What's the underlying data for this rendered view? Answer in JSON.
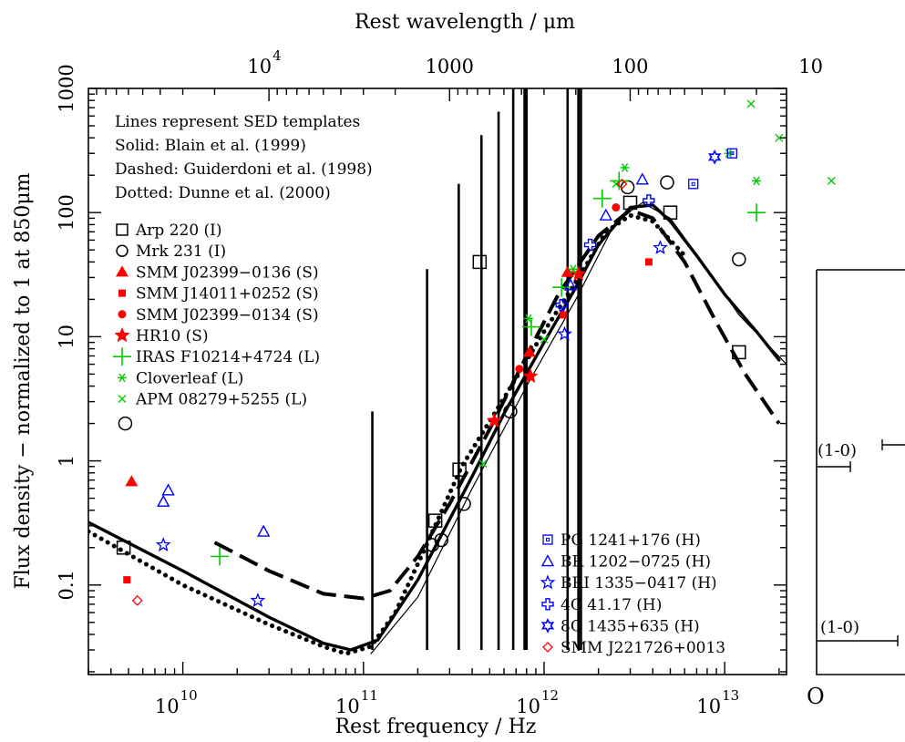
{
  "chart_data": {
    "type": "scatter",
    "xlabel": "Rest frequency / Hz",
    "x2label": "Rest wavelength / μm",
    "ylabel": "Flux density − normalized to 1 at 850μm",
    "x_scale": "log",
    "y_scale": "log",
    "xlim": [
      3000000000.0,
      22000000000000.0
    ],
    "ylim": [
      0.019,
      1000
    ],
    "x_tick_labels": [
      "10",
      "11",
      "12",
      "13"
    ],
    "x_tick_values": [
      10000000000.0,
      100000000000.0,
      1000000000000.0,
      10000000000000.0
    ],
    "x2_tick_labels": [
      "10",
      "100",
      "1000",
      "4"
    ],
    "x2_tick_wavelengths_um": [
      10,
      100,
      1000,
      10000
    ],
    "y_tick_labels": [
      "0.1",
      "1",
      "10",
      "100",
      "1000"
    ],
    "y_tick_values": [
      0.1,
      1,
      10,
      100,
      1000
    ],
    "annotation_lines": [
      "Lines represent SED templates",
      "Solid: Blain et al. (1999)",
      "Dashed: Guiderdoni et al. (1998)",
      "Dotted: Dunne et al. (2000)"
    ],
    "legend_left": [
      {
        "label": "Arp 220 (I)",
        "marker": "square",
        "color": "#000000"
      },
      {
        "label": "Mrk 231 (I)",
        "marker": "circle",
        "color": "#000000"
      },
      {
        "label": "SMM J02399−0136 (S)",
        "marker": "triangle-filled",
        "color": "#ff0000"
      },
      {
        "label": "SMM J14011+0252 (S)",
        "marker": "square-filled",
        "color": "#ff0000"
      },
      {
        "label": "SMM J02399−0134 (S)",
        "marker": "circle-filled",
        "color": "#ff0000"
      },
      {
        "label": "HR10 (S)",
        "marker": "star-filled",
        "color": "#ff0000"
      },
      {
        "label": "IRAS F10214+4724 (L)",
        "marker": "plus",
        "color": "#00cc00"
      },
      {
        "label": "Cloverleaf (L)",
        "marker": "asterisk",
        "color": "#00cc00"
      },
      {
        "label": "APM 08279+5255 (L)",
        "marker": "cross",
        "color": "#00cc00"
      }
    ],
    "legend_right": [
      {
        "label": "PG 1241+176 (H)",
        "marker": "square-open",
        "color": "#0000ff"
      },
      {
        "label": "BR 1202−0725 (H)",
        "marker": "triangle-open",
        "color": "#0000ff"
      },
      {
        "label": "BRI 1335−0417 (H)",
        "marker": "star-open",
        "color": "#0000ff"
      },
      {
        "label": "4C 41.17 (H)",
        "marker": "plus-open",
        "color": "#0000ff"
      },
      {
        "label": "8C 1435+635 (H)",
        "marker": "star6-open",
        "color": "#0000ff"
      },
      {
        "label": "SMM J221726+0013",
        "marker": "diamond-open",
        "color": "#ff0000"
      }
    ],
    "series": [
      {
        "name": "Arp 220 (I)",
        "marker": "square",
        "color": "#000000",
        "points": [
          [
            4700000000.0,
            0.2
          ],
          [
            250000000000.0,
            0.33
          ],
          [
            340000000000.0,
            0.85
          ],
          [
            440000000000.0,
            40
          ],
          [
            3000000000000.0,
            120
          ],
          [
            5000000000000.0,
            100
          ],
          [
            12000000000000.0,
            7.5
          ]
        ]
      },
      {
        "name": "Mrk 231 (I)",
        "marker": "circle",
        "color": "#000000",
        "points": [
          [
            4800000000.0,
            2.0
          ],
          [
            240000000000.0,
            0.21
          ],
          [
            270000000000.0,
            0.23
          ],
          [
            360000000000.0,
            0.45
          ],
          [
            650000000000.0,
            2.5
          ],
          [
            2900000000000.0,
            160
          ],
          [
            4800000000000.0,
            175
          ],
          [
            12000000000000.0,
            42
          ]
        ]
      },
      {
        "name": "SMM J02399−0136 (S)",
        "marker": "triangle-filled",
        "color": "#ff0000",
        "points": [
          [
            5200000000.0,
            0.68
          ],
          [
            830000000000.0,
            7.5
          ],
          [
            1350000000000.0,
            33
          ]
        ]
      },
      {
        "name": "SMM J14011+0252 (S)",
        "marker": "square-filled",
        "color": "#ff0000",
        "points": [
          [
            4900000000.0,
            0.11
          ],
          [
            1280000000000.0,
            15
          ],
          [
            3800000000000.0,
            40
          ]
        ]
      },
      {
        "name": "SMM J02399−0134 (S)",
        "marker": "circle-filled",
        "color": "#ff0000",
        "points": [
          [
            730000000000.0,
            5.5
          ],
          [
            2500000000000.0,
            110
          ]
        ]
      },
      {
        "name": "HR10 (S)",
        "marker": "star-filled",
        "color": "#ff0000",
        "points": [
          [
            530000000000.0,
            2.1
          ],
          [
            840000000000.0,
            4.8
          ],
          [
            1550000000000.0,
            32
          ]
        ]
      },
      {
        "name": "IRAS F10214+4724 (L)",
        "marker": "plus",
        "color": "#00cc00",
        "points": [
          [
            16000000000.0,
            0.17
          ],
          [
            850000000000.0,
            12
          ],
          [
            1250000000000.0,
            25
          ],
          [
            2100000000000.0,
            130
          ],
          [
            2600000000000.0,
            180
          ],
          [
            15000000000000.0,
            100
          ]
        ]
      },
      {
        "name": "Cloverleaf (L)",
        "marker": "asterisk",
        "color": "#00cc00",
        "points": [
          [
            820000000000.0,
            14
          ],
          [
            1450000000000.0,
            35
          ],
          [
            2800000000000.0,
            230
          ],
          [
            10500000000000.0,
            300
          ],
          [
            15000000000000.0,
            180
          ]
        ]
      },
      {
        "name": "APM 08279+5255 (L)",
        "marker": "cross",
        "color": "#00cc00",
        "points": [
          [
            460000000000.0,
            0.95
          ],
          [
            1000000000000.0,
            9.5
          ],
          [
            2500000000000.0,
            170
          ],
          [
            14000000000000.0,
            750
          ],
          [
            20000000000000.0,
            400
          ],
          [
            39000000000000.0,
            180
          ]
        ]
      },
      {
        "name": "PG 1241+176 (H)",
        "marker": "square-open",
        "color": "#0000ff",
        "points": [
          [
            6700000000000.0,
            170
          ],
          [
            11000000000000.0,
            300
          ]
        ]
      },
      {
        "name": "BR 1202−0725 (H)",
        "marker": "triangle-open",
        "color": "#0000ff",
        "points": [
          [
            7800000000.0,
            0.47
          ],
          [
            8300000000.0,
            0.58
          ],
          [
            28000000000.0,
            0.27
          ],
          [
            1400000000000.0,
            26
          ],
          [
            2200000000000.0,
            95
          ],
          [
            3500000000000.0,
            185
          ]
        ]
      },
      {
        "name": "BRI 1335−0417 (H)",
        "marker": "star-open",
        "color": "#0000ff",
        "points": [
          [
            7800000000.0,
            0.21
          ],
          [
            26000000000.0,
            0.075
          ],
          [
            1300000000000.0,
            10.5
          ],
          [
            4400000000000.0,
            52
          ]
        ]
      },
      {
        "name": "4C 41.17 (H)",
        "marker": "plus-open",
        "color": "#0000ff",
        "points": [
          [
            1250000000000.0,
            18
          ],
          [
            1800000000000.0,
            55
          ],
          [
            3800000000000.0,
            125
          ]
        ]
      },
      {
        "name": "8C 1435+635 (H)",
        "marker": "star6-open",
        "color": "#0000ff",
        "points": [
          [
            8800000000000.0,
            280
          ]
        ]
      },
      {
        "name": "SMM J221726+0013",
        "marker": "diamond-open",
        "color": "#ff0000",
        "points": [
          [
            5600000000.0,
            0.075
          ],
          [
            2700000000000.0,
            170
          ]
        ]
      }
    ],
    "sed_templates": [
      {
        "name": "Solid: Blain et al. (1999)",
        "style": "solid",
        "points": [
          [
            3000000000.0,
            0.32
          ],
          [
            10000000000.0,
            0.13
          ],
          [
            30000000000.0,
            0.055
          ],
          [
            60000000000.0,
            0.034
          ],
          [
            85000000000.0,
            0.03
          ],
          [
            120000000000.0,
            0.036
          ],
          [
            200000000000.0,
            0.11
          ],
          [
            400000000000.0,
            0.75
          ],
          [
            600000000000.0,
            2.4
          ],
          [
            1000000000000.0,
            9
          ],
          [
            1500000000000.0,
            25
          ],
          [
            2000000000000.0,
            55
          ],
          [
            3000000000000.0,
            110
          ],
          [
            4000000000000.0,
            115
          ],
          [
            5000000000000.0,
            85
          ],
          [
            7000000000000.0,
            45
          ],
          [
            10000000000000.0,
            22
          ],
          [
            15000000000000.0,
            11
          ],
          [
            20000000000000.0,
            6.5
          ]
        ]
      },
      {
        "name": "Thin branch",
        "style": "thin",
        "points": [
          [
            110000000000.0,
            0.028
          ],
          [
            200000000000.0,
            0.08
          ],
          [
            400000000000.0,
            0.6
          ],
          [
            800000000000.0,
            4
          ],
          [
            1500000000000.0,
            20
          ],
          [
            2500000000000.0,
            85
          ],
          [
            3500000000000.0,
            120
          ],
          [
            5000000000000.0,
            90
          ],
          [
            8000000000000.0,
            35
          ],
          [
            12000000000000.0,
            15
          ],
          [
            22000000000000.0,
            6
          ]
        ]
      },
      {
        "name": "Dashed: Guiderdoni et al. (1998)",
        "style": "dashed",
        "points": [
          [
            15000000000.0,
            0.22
          ],
          [
            30000000000.0,
            0.13
          ],
          [
            60000000000.0,
            0.085
          ],
          [
            100000000000.0,
            0.078
          ],
          [
            140000000000.0,
            0.09
          ],
          [
            200000000000.0,
            0.17
          ],
          [
            300000000000.0,
            0.45
          ],
          [
            500000000000.0,
            1.8
          ],
          [
            800000000000.0,
            7
          ],
          [
            1200000000000.0,
            22
          ],
          [
            2000000000000.0,
            65
          ],
          [
            3000000000000.0,
            105
          ],
          [
            4000000000000.0,
            90
          ],
          [
            6000000000000.0,
            40
          ],
          [
            9000000000000.0,
            13
          ],
          [
            13000000000000.0,
            5
          ],
          [
            20000000000000.0,
            2.0
          ]
        ]
      },
      {
        "name": "Dotted: Dunne et al. (2000)",
        "style": "dotted",
        "points": [
          [
            3000000000.0,
            0.27
          ],
          [
            10000000000.0,
            0.1
          ],
          [
            30000000000.0,
            0.048
          ],
          [
            60000000000.0,
            0.032
          ],
          [
            80000000000.0,
            0.028
          ],
          [
            110000000000.0,
            0.032
          ],
          [
            150000000000.0,
            0.06
          ],
          [
            220000000000.0,
            0.2
          ],
          [
            350000000000.0,
            0.9
          ],
          [
            600000000000.0,
            3.2
          ],
          [
            1000000000000.0,
            11
          ],
          [
            1600000000000.0,
            32
          ],
          [
            2200000000000.0,
            70
          ],
          [
            3000000000000.0,
            95
          ],
          [
            4000000000000.0,
            85
          ],
          [
            6000000000000.0,
            45
          ]
        ]
      }
    ],
    "vertical_lines": [
      {
        "x": 112000000000.0,
        "top": 2.5
      },
      {
        "x": 225000000000.0,
        "top": 35
      },
      {
        "x": 337000000000.0,
        "top": 170
      },
      {
        "x": 450000000000.0,
        "top": 420
      },
      {
        "x": 560000000000.0,
        "top": 650
      },
      {
        "x": 675000000000.0,
        "top": 1000
      },
      {
        "x": 780000000000.0,
        "top": 1000
      },
      {
        "x": 800000000000.0,
        "top": 1000
      },
      {
        "x": 1350000000000.0,
        "top": 1000
      },
      {
        "x": 1550000000000.0,
        "top": 1000
      },
      {
        "x": 1600000000000.0,
        "top": 1000
      }
    ],
    "side_panel": {
      "labels": [
        "(1-0)",
        "(1-0)",
        "O"
      ]
    }
  }
}
